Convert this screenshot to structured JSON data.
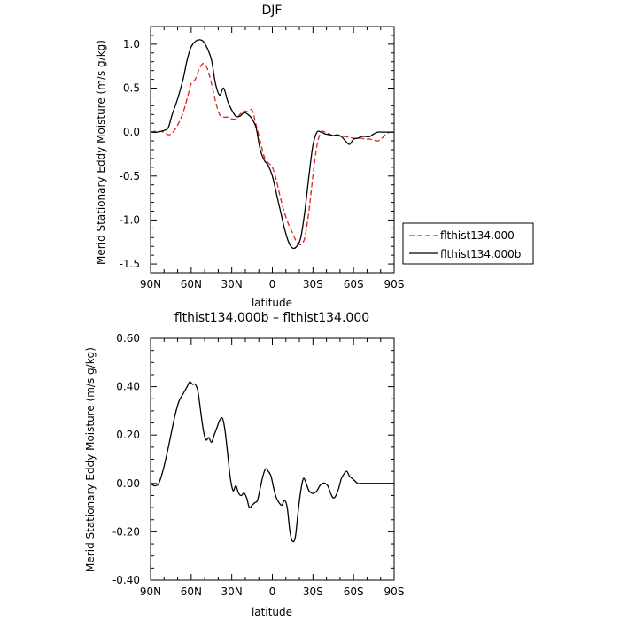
{
  "chart_data": [
    {
      "type": "line",
      "title": "DJF",
      "xlabel": "latitude",
      "ylabel": "Merid Stationary Eddy Moisture (m/s g/kg)",
      "xlim": [
        -90,
        90
      ],
      "ylim": [
        -1.6,
        1.2
      ],
      "x_ticks": [
        -90,
        -60,
        -30,
        0,
        30,
        60,
        90
      ],
      "x_tick_labels": [
        "90N",
        "60N",
        "30N",
        "0",
        "30S",
        "60S",
        "90S"
      ],
      "y_ticks": [
        1.0,
        0.5,
        0.0,
        -0.5,
        -1.0,
        -1.5
      ],
      "y_tick_labels": [
        "1.0",
        "0.5",
        "0.0",
        "-0.5",
        "-1.0",
        "-1.5"
      ],
      "legend_position": "right",
      "grid": false,
      "series": [
        {
          "name": "flthist134.000",
          "color": "#e0201b",
          "dash": "dashed",
          "x": [
            -90,
            -85,
            -80,
            -77,
            -74,
            -70,
            -66,
            -63,
            -60,
            -57,
            -54,
            -51,
            -48,
            -45,
            -42,
            -39,
            -36,
            -33,
            -30,
            -27,
            -24,
            -21,
            -18,
            -15,
            -12,
            -9,
            -6,
            -3,
            0,
            3,
            6,
            9,
            12,
            15,
            18,
            21,
            24,
            27,
            30,
            33,
            36,
            39,
            42,
            45,
            48,
            51,
            54,
            57,
            60,
            63,
            66,
            69,
            72,
            75,
            78,
            81,
            84,
            87,
            90
          ],
          "y": [
            0.0,
            0.01,
            0.0,
            -0.03,
            -0.01,
            0.08,
            0.22,
            0.38,
            0.55,
            0.6,
            0.72,
            0.78,
            0.72,
            0.55,
            0.35,
            0.2,
            0.17,
            0.17,
            0.15,
            0.15,
            0.2,
            0.24,
            0.23,
            0.25,
            0.08,
            -0.1,
            -0.28,
            -0.35,
            -0.4,
            -0.55,
            -0.75,
            -0.92,
            -1.05,
            -1.15,
            -1.25,
            -1.28,
            -1.2,
            -0.9,
            -0.5,
            -0.15,
            0.0,
            0.0,
            -0.02,
            -0.04,
            -0.04,
            -0.05,
            -0.05,
            -0.06,
            -0.07,
            -0.07,
            -0.07,
            -0.08,
            -0.08,
            -0.09,
            -0.1,
            -0.07,
            -0.02,
            0.0,
            0.0
          ]
        },
        {
          "name": "flthist134.000b",
          "color": "#000000",
          "dash": "solid",
          "x": [
            -90,
            -85,
            -80,
            -77,
            -74,
            -70,
            -66,
            -63,
            -60,
            -57,
            -54,
            -51,
            -48,
            -45,
            -42,
            -39,
            -36,
            -33,
            -30,
            -27,
            -24,
            -21,
            -18,
            -15,
            -12,
            -9,
            -6,
            -3,
            0,
            3,
            6,
            9,
            12,
            15,
            18,
            21,
            24,
            27,
            30,
            33,
            36,
            39,
            42,
            45,
            48,
            51,
            54,
            57,
            60,
            63,
            66,
            69,
            72,
            75,
            78,
            81,
            84,
            87,
            90
          ],
          "y": [
            0.0,
            0.0,
            0.02,
            0.05,
            0.2,
            0.38,
            0.6,
            0.82,
            0.97,
            1.03,
            1.05,
            1.03,
            0.95,
            0.82,
            0.55,
            0.42,
            0.5,
            0.35,
            0.25,
            0.18,
            0.18,
            0.22,
            0.2,
            0.15,
            0.05,
            -0.2,
            -0.32,
            -0.38,
            -0.5,
            -0.7,
            -0.9,
            -1.1,
            -1.25,
            -1.32,
            -1.3,
            -1.2,
            -0.9,
            -0.5,
            -0.15,
            0.0,
            0.0,
            -0.02,
            -0.03,
            -0.04,
            -0.03,
            -0.05,
            -0.1,
            -0.14,
            -0.08,
            -0.07,
            -0.05,
            -0.05,
            -0.05,
            -0.02,
            0.0,
            0.0,
            0.0,
            0.0,
            0.0
          ]
        }
      ]
    },
    {
      "type": "line",
      "title": "flthist134.000b – flthist134.000",
      "xlabel": "latitude",
      "ylabel": "Merid Stationary Eddy Moisture (m/s g/kg)",
      "xlim": [
        -90,
        90
      ],
      "ylim": [
        -0.4,
        0.6
      ],
      "x_ticks": [
        -90,
        -60,
        -30,
        0,
        30,
        60,
        90
      ],
      "x_tick_labels": [
        "90N",
        "60N",
        "30N",
        "0",
        "30S",
        "60S",
        "90S"
      ],
      "y_ticks": [
        0.6,
        0.4,
        0.2,
        0.0,
        -0.2,
        -0.4
      ],
      "y_tick_labels": [
        "0.60",
        "0.40",
        "0.20",
        "0.00",
        "-0.20",
        "-0.40"
      ],
      "grid": false,
      "series": [
        {
          "color": "#000000",
          "dash": "solid",
          "x": [
            -90,
            -87,
            -84,
            -81,
            -78,
            -75,
            -72,
            -69,
            -66,
            -63,
            -61,
            -59,
            -57,
            -55,
            -53,
            -51,
            -49,
            -47,
            -45,
            -43,
            -41,
            -39,
            -37,
            -35,
            -33,
            -31,
            -29,
            -27,
            -25,
            -23,
            -21,
            -19,
            -17,
            -15,
            -13,
            -11,
            -9,
            -7,
            -5,
            -3,
            -1,
            1,
            3,
            5,
            7,
            9,
            11,
            13,
            15,
            17,
            19,
            21,
            23,
            25,
            27,
            29,
            31,
            33,
            35,
            37,
            39,
            41,
            43,
            45,
            47,
            49,
            51,
            53,
            55,
            57,
            59,
            61,
            63,
            65,
            67,
            69,
            71,
            73,
            75,
            77,
            79,
            81,
            83,
            85,
            87,
            90
          ],
          "y": [
            0.0,
            -0.01,
            0.0,
            0.05,
            0.12,
            0.2,
            0.28,
            0.34,
            0.37,
            0.4,
            0.42,
            0.41,
            0.41,
            0.38,
            0.3,
            0.22,
            0.18,
            0.19,
            0.17,
            0.2,
            0.23,
            0.26,
            0.27,
            0.22,
            0.12,
            0.02,
            -0.03,
            -0.01,
            -0.04,
            -0.05,
            -0.04,
            -0.06,
            -0.1,
            -0.09,
            -0.08,
            -0.07,
            -0.02,
            0.03,
            0.06,
            0.05,
            0.03,
            -0.02,
            -0.06,
            -0.08,
            -0.09,
            -0.07,
            -0.1,
            -0.2,
            -0.24,
            -0.22,
            -0.12,
            -0.03,
            0.02,
            0.0,
            -0.03,
            -0.04,
            -0.04,
            -0.03,
            -0.01,
            0.0,
            0.0,
            -0.01,
            -0.04,
            -0.06,
            -0.05,
            -0.02,
            0.02,
            0.04,
            0.05,
            0.03,
            0.02,
            0.01,
            0.0,
            0.0,
            0.0,
            0.0,
            0.0,
            0.0,
            0.0,
            0.0,
            0.0,
            0.0,
            0.0,
            0.0,
            0.0,
            0.0
          ]
        }
      ]
    }
  ]
}
